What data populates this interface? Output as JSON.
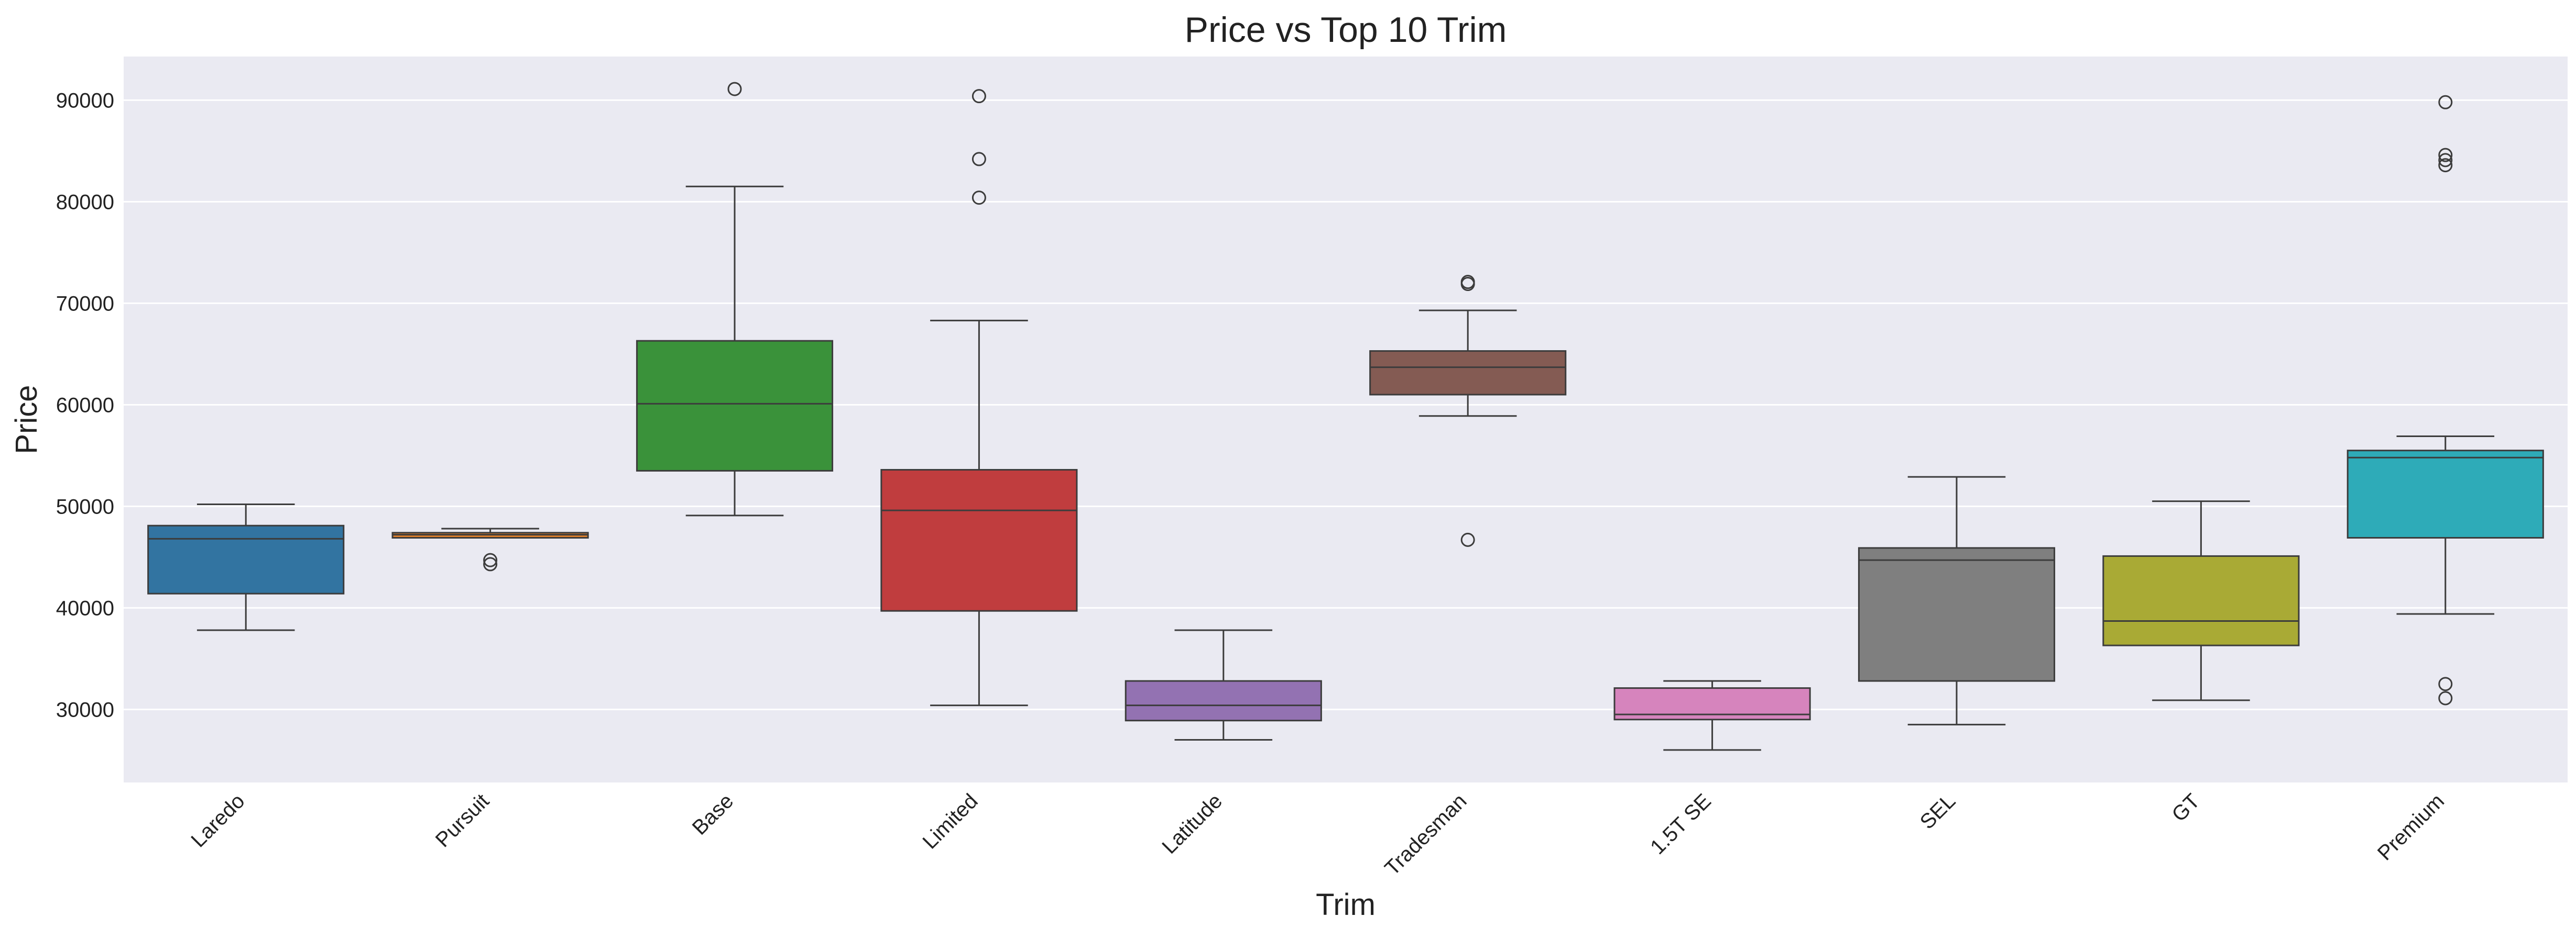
{
  "chart_data": {
    "type": "box",
    "title": "Price vs Top 10 Trim",
    "xlabel": "Trim",
    "ylabel": "Price",
    "ylim": [
      22800,
      94300
    ],
    "y_ticks": [
      "30000",
      "40000",
      "50000",
      "60000",
      "70000",
      "80000",
      "90000"
    ],
    "y_tick_values": [
      30000,
      40000,
      50000,
      60000,
      70000,
      80000,
      90000
    ],
    "grid": true,
    "legend": "none",
    "colors": {
      "plot_background": "#eaeaf2",
      "grid": "#ffffff",
      "line": "#3c3c3c"
    },
    "categories": [
      "Laredo",
      "Pursuit",
      "Base",
      "Limited",
      "Latitude",
      "Tradesman",
      "1.5T SE",
      "SEL",
      "GT",
      "Premium"
    ],
    "boxes": [
      {
        "category": "Laredo",
        "color": "#3274a1",
        "whisker_low": 37800,
        "q1": 41400,
        "median": 46800,
        "q3": 48100,
        "whisker_high": 50200,
        "outliers": []
      },
      {
        "category": "Pursuit",
        "color": "#e1812c",
        "whisker_low": 46900,
        "q1": 46900,
        "median": 47200,
        "q3": 47400,
        "whisker_high": 47800,
        "outliers": [
          44700,
          44300
        ]
      },
      {
        "category": "Base",
        "color": "#3a923a",
        "whisker_low": 49100,
        "q1": 53500,
        "median": 60100,
        "q3": 66300,
        "whisker_high": 81500,
        "outliers": [
          91100
        ]
      },
      {
        "category": "Limited",
        "color": "#c03d3e",
        "whisker_low": 30400,
        "q1": 39700,
        "median": 49600,
        "q3": 53600,
        "whisker_high": 68300,
        "outliers": [
          80400,
          84200,
          90400
        ]
      },
      {
        "category": "Latitude",
        "color": "#9372b2",
        "whisker_low": 27000,
        "q1": 28900,
        "median": 30400,
        "q3": 32800,
        "whisker_high": 37800,
        "outliers": []
      },
      {
        "category": "Tradesman",
        "color": "#845b53",
        "whisker_low": 58900,
        "q1": 61000,
        "median": 63700,
        "q3": 65300,
        "whisker_high": 69300,
        "outliers": [
          71900,
          72100,
          46700
        ]
      },
      {
        "category": "1.5T SE",
        "color": "#d684bd",
        "whisker_low": 26000,
        "q1": 29000,
        "median": 29500,
        "q3": 32100,
        "whisker_high": 32800,
        "outliers": []
      },
      {
        "category": "SEL",
        "color": "#7f7f7f",
        "whisker_low": 28500,
        "q1": 32800,
        "median": 44700,
        "q3": 45900,
        "whisker_high": 52900,
        "outliers": []
      },
      {
        "category": "GT",
        "color": "#a9aa35",
        "whisker_low": 30900,
        "q1": 36300,
        "median": 38700,
        "q3": 45100,
        "whisker_high": 50500,
        "outliers": []
      },
      {
        "category": "Premium",
        "color": "#2eabb8",
        "whisker_low": 39400,
        "q1": 46900,
        "median": 54800,
        "q3": 55500,
        "whisker_high": 56900,
        "outliers": [
          89800,
          84600,
          84100,
          83600,
          32500,
          31100
        ]
      }
    ]
  }
}
